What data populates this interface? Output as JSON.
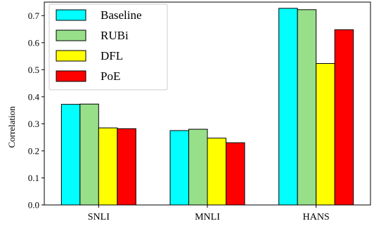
{
  "chart_data": {
    "type": "bar",
    "title": "",
    "xlabel": "",
    "ylabel": "Correlation",
    "categories": [
      "SNLI",
      "MNLI",
      "HANS"
    ],
    "ylim": [
      0,
      0.75
    ],
    "yticks": [
      0.0,
      0.1,
      0.2,
      0.3,
      0.4,
      0.5,
      0.6,
      0.7
    ],
    "ytick_labels": [
      "0.0",
      "0.1",
      "0.2",
      "0.3",
      "0.4",
      "0.5",
      "0.6",
      "0.7"
    ],
    "grid": false,
    "legend": "top-left",
    "series": [
      {
        "name": "Baseline",
        "color": "#00ffff",
        "values": [
          0.372,
          0.275,
          0.727
        ]
      },
      {
        "name": "RUBi",
        "color": "#98df8a",
        "values": [
          0.373,
          0.28,
          0.722
        ]
      },
      {
        "name": "DFL",
        "color": "#ffff00",
        "values": [
          0.285,
          0.247,
          0.523
        ]
      },
      {
        "name": "PoE",
        "color": "#ff0000",
        "values": [
          0.282,
          0.23,
          0.648
        ]
      }
    ]
  }
}
